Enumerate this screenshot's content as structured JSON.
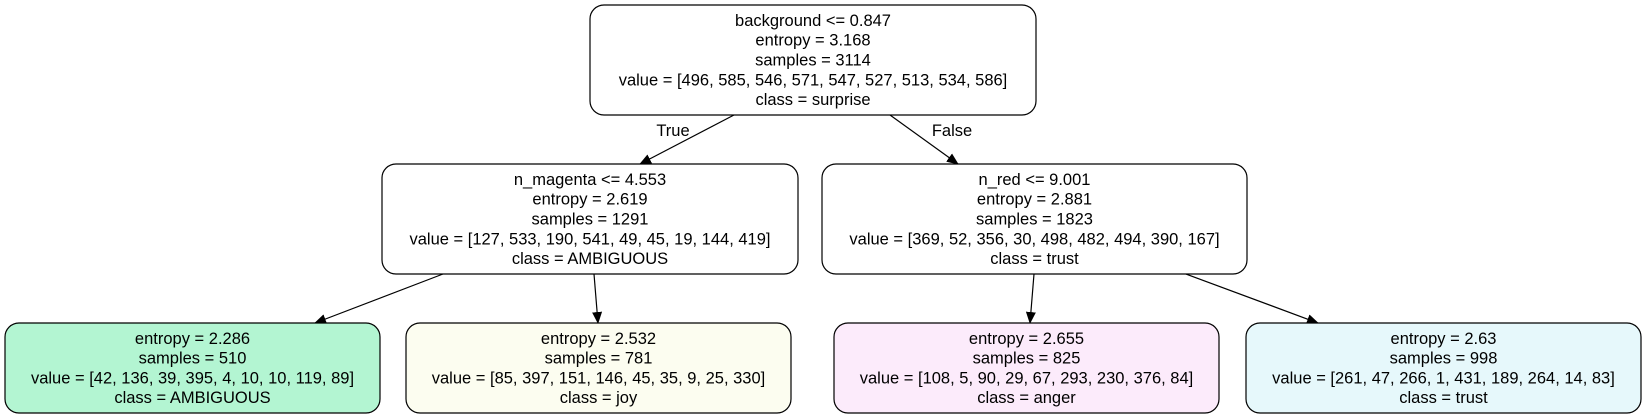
{
  "tree": {
    "nodes": [
      {
        "id": "root",
        "lines": [
          "background <= 0.847",
          "entropy = 3.168",
          "samples = 3114",
          "value = [496, 585, 546, 571, 547, 527, 513, 534, 586]",
          "class = surprise"
        ],
        "fill": "#ffffff"
      },
      {
        "id": "left",
        "lines": [
          "n_magenta <= 4.553",
          "entropy = 2.619",
          "samples = 1291",
          "value = [127, 533, 190, 541, 49, 45, 19, 144, 419]",
          "class = AMBIGUOUS"
        ],
        "fill": "#ffffff"
      },
      {
        "id": "right",
        "lines": [
          "n_red <= 9.001",
          "entropy = 2.881",
          "samples = 1823",
          "value = [369, 52, 356, 30, 498, 482, 494, 390, 167]",
          "class = trust"
        ],
        "fill": "#ffffff"
      },
      {
        "id": "left-left",
        "lines": [
          "entropy = 2.286",
          "samples = 510",
          "value = [42, 136, 39, 395, 4, 10, 10, 119, 89]",
          "class = AMBIGUOUS"
        ],
        "fill": "#b3f5d2"
      },
      {
        "id": "left-right",
        "lines": [
          "entropy = 2.532",
          "samples = 781",
          "value = [85, 397, 151, 146, 45, 35, 9, 25, 330]",
          "class = joy"
        ],
        "fill": "#fcfdf0"
      },
      {
        "id": "right-left",
        "lines": [
          "entropy = 2.655",
          "samples = 825",
          "value = [108, 5, 90, 29, 67, 293, 230, 376, 84]",
          "class = anger"
        ],
        "fill": "#fcebfb"
      },
      {
        "id": "right-right",
        "lines": [
          "entropy = 2.63",
          "samples = 998",
          "value = [261, 47, 266, 1, 431, 189, 264, 14, 83]",
          "class = trust"
        ],
        "fill": "#e6f8fb"
      }
    ],
    "edges": [
      {
        "from": "root",
        "to": "left",
        "label": "True"
      },
      {
        "from": "root",
        "to": "right",
        "label": "False"
      },
      {
        "from": "left",
        "to": "left-left",
        "label": ""
      },
      {
        "from": "left",
        "to": "left-right",
        "label": ""
      },
      {
        "from": "right",
        "to": "right-left",
        "label": ""
      },
      {
        "from": "right",
        "to": "right-right",
        "label": ""
      }
    ]
  }
}
